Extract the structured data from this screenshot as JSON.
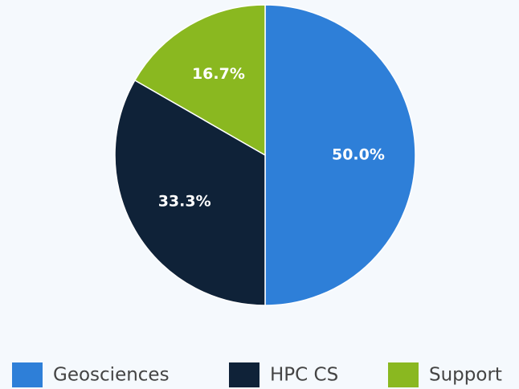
{
  "chart_data": {
    "type": "pie",
    "categories": [
      "Geosciences",
      "HPC CS",
      "Support"
    ],
    "values": [
      50.0,
      33.3,
      16.7
    ],
    "value_labels": [
      "50.0%",
      "33.3%",
      "16.7%"
    ],
    "colors": [
      "#2e7fd8",
      "#0f2238",
      "#8ab820"
    ],
    "legend": "bottom"
  }
}
